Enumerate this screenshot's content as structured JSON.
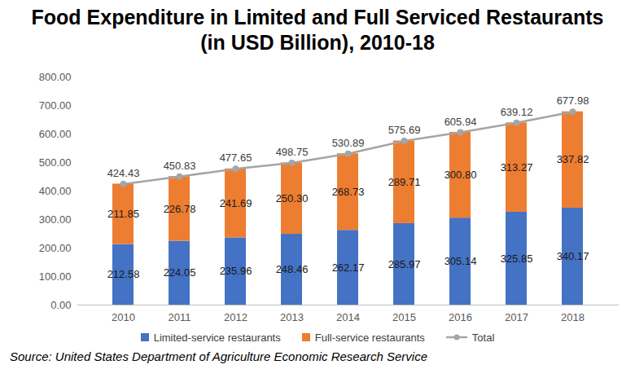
{
  "chart_data": {
    "type": "bar",
    "title": "Food Expenditure in Limited and Full Serviced Restaurants (in USD Billion), 2010-18",
    "caption": "Source: United States Department of Agriculture Economic Research Service",
    "stacked": true,
    "data_labels": true,
    "grid": false,
    "legend": "bottom",
    "categories": [
      "2010",
      "2011",
      "2012",
      "2013",
      "2014",
      "2015",
      "2016",
      "2017",
      "2018"
    ],
    "series": [
      {
        "name": "Limited-service restaurants",
        "color": "#4472C4",
        "values": [
          212.58,
          224.05,
          235.96,
          248.46,
          262.17,
          285.97,
          305.14,
          325.85,
          340.17
        ],
        "value_labels": [
          "212.58",
          "224.05",
          "235.96",
          "248.46",
          "262.17",
          "285.97",
          "305.14",
          "325.85",
          "340.17"
        ]
      },
      {
        "name": "Full-service restaurants",
        "color": "#ED7D31",
        "values": [
          211.85,
          226.78,
          241.69,
          250.3,
          268.73,
          289.71,
          300.8,
          313.27,
          337.82
        ],
        "value_labels": [
          "211.85",
          "226.78",
          "241.69",
          "250.30",
          "268.73",
          "289.71",
          "300.80",
          "313.27",
          "337.82"
        ]
      },
      {
        "name": "Total",
        "type": "line",
        "marker": "circle",
        "color": "#A5A5A5",
        "values": [
          424.43,
          450.83,
          477.65,
          498.75,
          530.89,
          575.69,
          605.94,
          639.12,
          677.98
        ],
        "value_labels": [
          "424.43",
          "450.83",
          "477.65",
          "498.75",
          "530.89",
          "575.69",
          "605.94",
          "639.12",
          "677.98"
        ]
      }
    ],
    "ylim": [
      0,
      800
    ],
    "yticks": [
      {
        "value": 0,
        "label": "0.00"
      },
      {
        "value": 100,
        "label": "100.00"
      },
      {
        "value": 200,
        "label": "200.00"
      },
      {
        "value": 300,
        "label": "300.00"
      },
      {
        "value": 400,
        "label": "400.00"
      },
      {
        "value": 500,
        "label": "500.00"
      },
      {
        "value": 600,
        "label": "600.00"
      },
      {
        "value": 700,
        "label": "700.00"
      },
      {
        "value": 800,
        "label": "800.00"
      }
    ]
  }
}
